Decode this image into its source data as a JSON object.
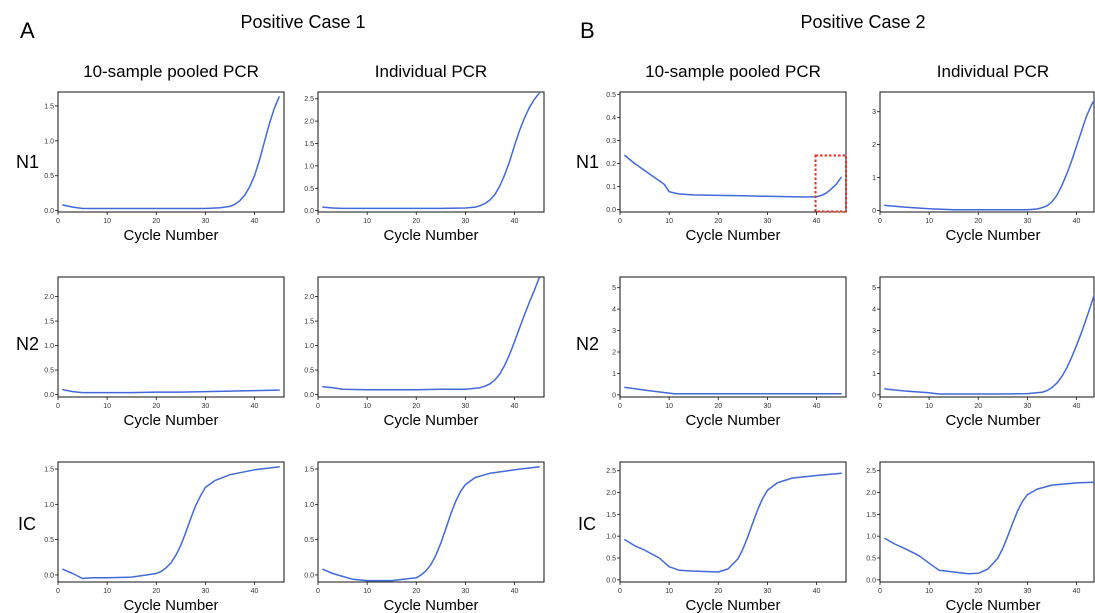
{
  "figure": {
    "panels": [
      {
        "letter": "A",
        "title": "Positive Case 1"
      },
      {
        "letter": "B",
        "title": "Positive Case 2"
      }
    ],
    "column_titles": [
      "10-sample pooled PCR",
      "Individual PCR",
      "10-sample pooled PCR",
      "Individual PCR"
    ],
    "row_labels": [
      "N1",
      "N2",
      "IC"
    ],
    "xlabel": "Cycle Number"
  },
  "colors": {
    "curve": "#4169d9",
    "highlight": "#e0341e",
    "axis": "#111111"
  },
  "chart_data": [
    {
      "type": "line",
      "panel": "A",
      "row": "N1",
      "column": "10-sample pooled PCR",
      "xlim": [
        0,
        46
      ],
      "ylim": [
        -0.02,
        1.7
      ],
      "xticks": [
        0,
        10,
        20,
        30,
        40
      ],
      "yticks": [
        0.0,
        0.5,
        1.0,
        1.5
      ],
      "x": [
        1,
        3,
        5,
        10,
        15,
        20,
        25,
        30,
        33,
        35,
        36,
        37,
        38,
        39,
        40,
        41,
        42,
        43,
        44,
        45
      ],
      "y": [
        0.08,
        0.05,
        0.03,
        0.03,
        0.03,
        0.03,
        0.03,
        0.03,
        0.04,
        0.06,
        0.09,
        0.14,
        0.22,
        0.34,
        0.5,
        0.72,
        0.98,
        1.24,
        1.46,
        1.63
      ]
    },
    {
      "type": "line",
      "panel": "A",
      "row": "N1",
      "column": "Individual PCR",
      "xlim": [
        0,
        46
      ],
      "ylim": [
        -0.03,
        2.65
      ],
      "xticks": [
        0,
        10,
        20,
        30,
        40
      ],
      "yticks": [
        0.0,
        0.5,
        1.0,
        1.5,
        2.0,
        2.5
      ],
      "x": [
        1,
        3,
        5,
        10,
        15,
        20,
        25,
        30,
        32,
        33,
        34,
        35,
        36,
        37,
        38,
        39,
        40,
        41,
        42,
        43,
        44,
        45
      ],
      "y": [
        0.08,
        0.06,
        0.05,
        0.05,
        0.05,
        0.05,
        0.05,
        0.06,
        0.08,
        0.11,
        0.16,
        0.24,
        0.36,
        0.55,
        0.8,
        1.1,
        1.45,
        1.78,
        2.06,
        2.3,
        2.48,
        2.62
      ]
    },
    {
      "type": "line",
      "panel": "B",
      "row": "N1",
      "column": "10-sample pooled PCR",
      "xlim": [
        0,
        46
      ],
      "ylim": [
        -0.01,
        0.51
      ],
      "xticks": [
        0,
        10,
        20,
        30,
        40
      ],
      "yticks": [
        0.0,
        0.1,
        0.2,
        0.3,
        0.4,
        0.5
      ],
      "x": [
        1,
        3,
        5,
        7,
        8,
        9,
        10,
        12,
        15,
        20,
        25,
        30,
        35,
        38,
        40,
        41,
        42,
        43,
        44,
        45
      ],
      "y": [
        0.235,
        0.2,
        0.17,
        0.14,
        0.125,
        0.11,
        0.078,
        0.068,
        0.064,
        0.062,
        0.06,
        0.058,
        0.056,
        0.055,
        0.056,
        0.062,
        0.072,
        0.09,
        0.11,
        0.14
      ]
    },
    {
      "type": "line",
      "panel": "B",
      "row": "N1",
      "column": "Individual PCR",
      "xlim": [
        0,
        46
      ],
      "ylim": [
        -0.05,
        3.6
      ],
      "xticks": [
        0,
        10,
        20,
        30,
        40
      ],
      "yticks": [
        0,
        1,
        2,
        3
      ],
      "x": [
        1,
        5,
        10,
        15,
        20,
        25,
        30,
        32,
        33,
        34,
        35,
        36,
        37,
        38,
        39,
        40,
        41,
        42,
        43,
        44
      ],
      "y": [
        0.15,
        0.1,
        0.05,
        0.02,
        0.02,
        0.02,
        0.02,
        0.04,
        0.08,
        0.14,
        0.26,
        0.46,
        0.75,
        1.1,
        1.5,
        1.95,
        2.4,
        2.85,
        3.2,
        3.45
      ]
    },
    {
      "type": "line",
      "panel": "A",
      "row": "N2",
      "column": "10-sample pooled PCR",
      "xlim": [
        0,
        46
      ],
      "ylim": [
        -0.05,
        2.4
      ],
      "xticks": [
        0,
        10,
        20,
        30,
        40
      ],
      "yticks": [
        0.0,
        0.5,
        1.0,
        1.5,
        2.0
      ],
      "x": [
        1,
        3,
        5,
        10,
        15,
        20,
        25,
        30,
        35,
        40,
        45
      ],
      "y": [
        0.1,
        0.06,
        0.04,
        0.04,
        0.04,
        0.05,
        0.05,
        0.06,
        0.07,
        0.08,
        0.09
      ]
    },
    {
      "type": "line",
      "panel": "A",
      "row": "N2",
      "column": "Individual PCR",
      "xlim": [
        0,
        46
      ],
      "ylim": [
        -0.05,
        2.4
      ],
      "xticks": [
        0,
        10,
        20,
        30,
        40
      ],
      "yticks": [
        0.0,
        0.5,
        1.0,
        1.5,
        2.0
      ],
      "x": [
        1,
        3,
        5,
        10,
        15,
        20,
        25,
        30,
        33,
        34,
        35,
        36,
        37,
        38,
        39,
        40,
        41,
        42,
        43,
        44,
        45
      ],
      "y": [
        0.16,
        0.14,
        0.11,
        0.1,
        0.1,
        0.1,
        0.11,
        0.11,
        0.14,
        0.17,
        0.22,
        0.3,
        0.42,
        0.6,
        0.82,
        1.08,
        1.35,
        1.62,
        1.88,
        2.12,
        2.38
      ]
    },
    {
      "type": "line",
      "panel": "B",
      "row": "N2",
      "column": "10-sample pooled PCR",
      "xlim": [
        0,
        46
      ],
      "ylim": [
        -0.1,
        5.5
      ],
      "xticks": [
        0,
        10,
        20,
        30,
        40
      ],
      "yticks": [
        0,
        1,
        2,
        3,
        4,
        5
      ],
      "x": [
        1,
        5,
        11,
        15,
        20,
        25,
        30,
        35,
        40,
        45
      ],
      "y": [
        0.35,
        0.22,
        0.05,
        0.05,
        0.05,
        0.05,
        0.05,
        0.05,
        0.05,
        0.05
      ]
    },
    {
      "type": "line",
      "panel": "B",
      "row": "N2",
      "column": "Individual PCR",
      "xlim": [
        0,
        46
      ],
      "ylim": [
        -0.1,
        5.5
      ],
      "xticks": [
        0,
        10,
        20,
        30,
        40
      ],
      "yticks": [
        0,
        1,
        2,
        3,
        4,
        5
      ],
      "x": [
        1,
        5,
        10,
        12,
        15,
        20,
        25,
        30,
        33,
        34,
        35,
        36,
        37,
        38,
        39,
        40,
        41,
        42,
        43,
        44
      ],
      "y": [
        0.28,
        0.18,
        0.1,
        0.04,
        0.04,
        0.04,
        0.04,
        0.06,
        0.12,
        0.2,
        0.34,
        0.55,
        0.85,
        1.25,
        1.75,
        2.3,
        2.9,
        3.55,
        4.25,
        4.95
      ]
    },
    {
      "type": "line",
      "panel": "A",
      "row": "IC",
      "column": "10-sample pooled PCR",
      "xlim": [
        0,
        46
      ],
      "ylim": [
        -0.1,
        1.6
      ],
      "xticks": [
        0,
        10,
        20,
        30,
        40
      ],
      "yticks": [
        0.0,
        0.5,
        1.0,
        1.5
      ],
      "x": [
        1,
        3,
        5,
        7,
        10,
        15,
        20,
        21,
        22,
        23,
        24,
        25,
        26,
        27,
        28,
        29,
        30,
        32,
        35,
        40,
        45
      ],
      "y": [
        0.08,
        0.02,
        -0.05,
        -0.04,
        -0.04,
        -0.03,
        0.02,
        0.05,
        0.1,
        0.17,
        0.28,
        0.42,
        0.6,
        0.8,
        0.98,
        1.12,
        1.24,
        1.34,
        1.42,
        1.49,
        1.53
      ]
    },
    {
      "type": "line",
      "panel": "A",
      "row": "IC",
      "column": "Individual PCR",
      "xlim": [
        0,
        46
      ],
      "ylim": [
        -0.1,
        1.6
      ],
      "xticks": [
        0,
        10,
        20,
        30,
        40
      ],
      "yticks": [
        0.0,
        0.5,
        1.0,
        1.5
      ],
      "x": [
        1,
        3,
        5,
        7,
        10,
        15,
        20,
        21,
        22,
        23,
        24,
        25,
        26,
        27,
        28,
        29,
        30,
        32,
        35,
        40,
        45
      ],
      "y": [
        0.08,
        0.02,
        -0.02,
        -0.06,
        -0.08,
        -0.08,
        -0.04,
        0.0,
        0.06,
        0.15,
        0.28,
        0.45,
        0.65,
        0.86,
        1.04,
        1.18,
        1.28,
        1.38,
        1.44,
        1.49,
        1.53
      ]
    },
    {
      "type": "line",
      "panel": "B",
      "row": "IC",
      "column": "10-sample pooled PCR",
      "xlim": [
        0,
        46
      ],
      "ylim": [
        -0.05,
        2.7
      ],
      "xticks": [
        0,
        10,
        20,
        30,
        40
      ],
      "yticks": [
        0.0,
        0.5,
        1.0,
        1.5,
        2.0,
        2.5
      ],
      "x": [
        1,
        3,
        5,
        8,
        10,
        12,
        15,
        20,
        22,
        24,
        25,
        26,
        27,
        28,
        29,
        30,
        32,
        35,
        40,
        44,
        45
      ],
      "y": [
        0.92,
        0.78,
        0.68,
        0.5,
        0.3,
        0.22,
        0.2,
        0.18,
        0.25,
        0.48,
        0.7,
        0.98,
        1.3,
        1.6,
        1.86,
        2.05,
        2.22,
        2.33,
        2.39,
        2.43,
        2.44
      ]
    },
    {
      "type": "line",
      "panel": "B",
      "row": "IC",
      "column": "Individual PCR",
      "xlim": [
        0,
        46
      ],
      "ylim": [
        -0.05,
        2.7
      ],
      "xticks": [
        0,
        10,
        20,
        30,
        40
      ],
      "yticks": [
        0.0,
        0.5,
        1.0,
        1.5,
        2.0,
        2.5
      ],
      "x": [
        1,
        3,
        5,
        8,
        10,
        12,
        15,
        18,
        20,
        22,
        24,
        25,
        26,
        27,
        28,
        29,
        30,
        32,
        35,
        40,
        44
      ],
      "y": [
        0.95,
        0.82,
        0.72,
        0.55,
        0.38,
        0.22,
        0.18,
        0.14,
        0.15,
        0.25,
        0.5,
        0.72,
        1.0,
        1.3,
        1.58,
        1.8,
        1.95,
        2.08,
        2.17,
        2.22,
        2.24
      ]
    }
  ]
}
